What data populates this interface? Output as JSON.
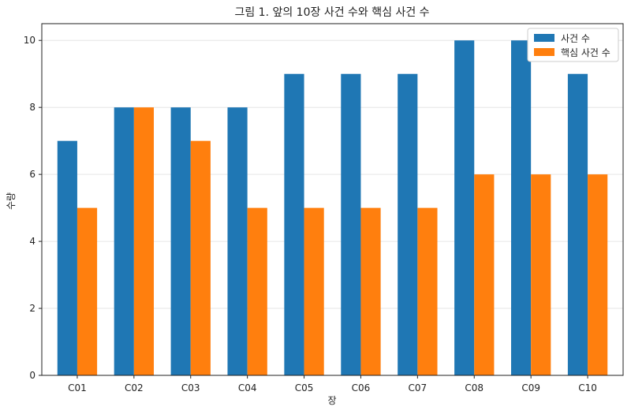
{
  "chart_data": {
    "type": "bar",
    "title": "그림 1. 앞의 10장 사건 수와 핵심 사건 수",
    "xlabel": "장",
    "ylabel": "수량",
    "categories": [
      "C01",
      "C02",
      "C03",
      "C04",
      "C05",
      "C06",
      "C07",
      "C08",
      "C09",
      "C10"
    ],
    "series": [
      {
        "name": "사건 수",
        "color": "#1f77b4",
        "values": [
          7,
          8,
          8,
          8,
          9,
          9,
          9,
          10,
          10,
          9
        ]
      },
      {
        "name": "핵심 사건 수",
        "color": "#ff7f0e",
        "values": [
          5,
          8,
          7,
          5,
          5,
          5,
          5,
          6,
          6,
          6
        ]
      }
    ],
    "ylim": [
      0,
      10.5
    ],
    "yticks": [
      0,
      2,
      4,
      6,
      8,
      10
    ],
    "grid": "y",
    "legend_position": "top-right"
  }
}
